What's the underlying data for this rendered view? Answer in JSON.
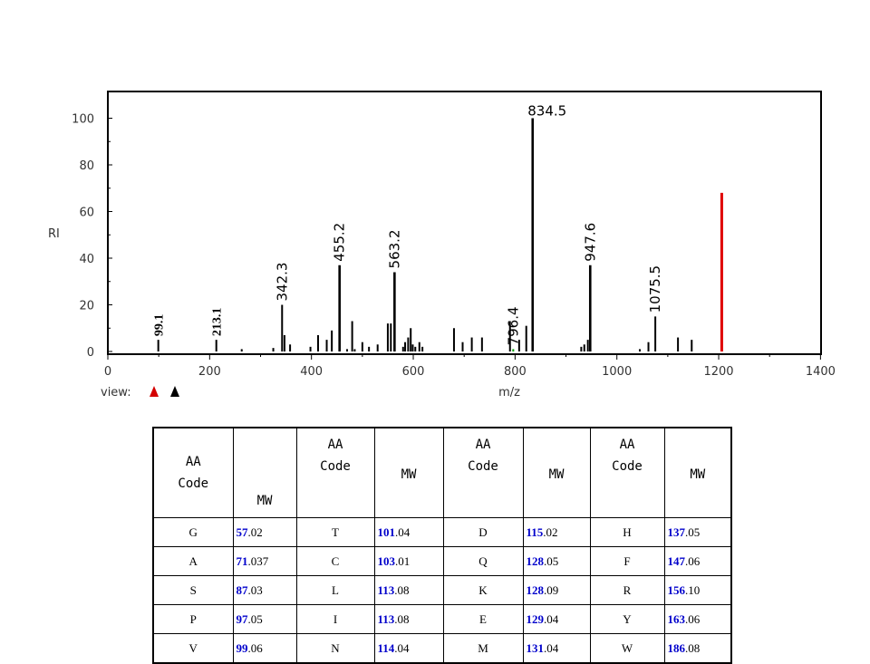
{
  "chart_data": {
    "type": "bar",
    "xlabel": "m/z",
    "ylabel": "RI",
    "xlim": [
      0,
      1400
    ],
    "ylim": [
      0,
      110
    ],
    "x_ticks": [
      0,
      200,
      400,
      600,
      800,
      1000,
      1200,
      1400
    ],
    "y_ticks": [
      0,
      20,
      40,
      60,
      80,
      100
    ],
    "view_label": "view:",
    "peaks": [
      {
        "mz": 99.1,
        "ri": 5
      },
      {
        "mz": 213.1,
        "ri": 5
      },
      {
        "mz": 263,
        "ri": 1
      },
      {
        "mz": 325,
        "ri": 1.5
      },
      {
        "mz": 342.3,
        "ri": 20
      },
      {
        "mz": 347,
        "ri": 7
      },
      {
        "mz": 358,
        "ri": 3
      },
      {
        "mz": 398,
        "ri": 2
      },
      {
        "mz": 413,
        "ri": 7
      },
      {
        "mz": 430,
        "ri": 5
      },
      {
        "mz": 440,
        "ri": 9
      },
      {
        "mz": 455.2,
        "ri": 37
      },
      {
        "mz": 470,
        "ri": 1
      },
      {
        "mz": 480,
        "ri": 13
      },
      {
        "mz": 485,
        "ri": 1
      },
      {
        "mz": 500,
        "ri": 4
      },
      {
        "mz": 513,
        "ri": 2
      },
      {
        "mz": 530,
        "ri": 3
      },
      {
        "mz": 550,
        "ri": 12
      },
      {
        "mz": 556,
        "ri": 12
      },
      {
        "mz": 563.2,
        "ri": 34
      },
      {
        "mz": 580,
        "ri": 2
      },
      {
        "mz": 584,
        "ri": 4
      },
      {
        "mz": 590,
        "ri": 6
      },
      {
        "mz": 595,
        "ri": 10
      },
      {
        "mz": 599,
        "ri": 3
      },
      {
        "mz": 604,
        "ri": 2
      },
      {
        "mz": 612,
        "ri": 4
      },
      {
        "mz": 618,
        "ri": 2
      },
      {
        "mz": 680,
        "ri": 10
      },
      {
        "mz": 697,
        "ri": 4
      },
      {
        "mz": 715,
        "ri": 6
      },
      {
        "mz": 735,
        "ri": 6
      },
      {
        "mz": 790,
        "ri": 13
      },
      {
        "mz": 796.4,
        "ri": 1
      },
      {
        "mz": 808,
        "ri": 5
      },
      {
        "mz": 822,
        "ri": 11
      },
      {
        "mz": 834.5,
        "ri": 100
      },
      {
        "mz": 930,
        "ri": 2
      },
      {
        "mz": 936,
        "ri": 3
      },
      {
        "mz": 943,
        "ri": 5
      },
      {
        "mz": 947.6,
        "ri": 37
      },
      {
        "mz": 1045,
        "ri": 1
      },
      {
        "mz": 1062,
        "ri": 4
      },
      {
        "mz": 1075.5,
        "ri": 15
      },
      {
        "mz": 1120,
        "ri": 6
      },
      {
        "mz": 1147,
        "ri": 5
      },
      {
        "mz": 1206,
        "ri": 68
      }
    ],
    "peak_labels": [
      {
        "mz": 99.1,
        "ri": 5,
        "text": "99.1",
        "style": "serif"
      },
      {
        "mz": 213.1,
        "ri": 5,
        "text": "213.1",
        "style": "serif"
      },
      {
        "mz": 342.3,
        "ri": 20,
        "text": "342.3",
        "style": "sans"
      },
      {
        "mz": 455.2,
        "ri": 37,
        "text": "455.2",
        "style": "sans"
      },
      {
        "mz": 563.2,
        "ri": 34,
        "text": "563.2",
        "style": "sans"
      },
      {
        "mz": 796.4,
        "ri": 1,
        "text": "796.4",
        "style": "sans"
      },
      {
        "mz": 947.6,
        "ri": 37,
        "text": "947.6",
        "style": "sans"
      },
      {
        "mz": 1075.5,
        "ri": 15,
        "text": "1075.5",
        "style": "sans"
      },
      {
        "mz": 834.5,
        "ri": 100,
        "text": "834.5",
        "style": "sans-horizontal"
      }
    ],
    "highlight_color": "#e00000",
    "marker_color": "#00a000"
  },
  "table": {
    "headers": [
      {
        "code": [
          "AA",
          "Code"
        ],
        "mw": "MW"
      },
      {
        "code": [
          "AA",
          "Code"
        ],
        "mw": "MW"
      },
      {
        "code": [
          "AA",
          "Code"
        ],
        "mw": "MW"
      },
      {
        "code": [
          "AA",
          "Code"
        ],
        "mw": "MW"
      }
    ],
    "rows": [
      [
        {
          "code": "G",
          "int": "57",
          "dec": ".02"
        },
        {
          "code": "T",
          "int": "101",
          "dec": ".04"
        },
        {
          "code": "D",
          "int": "115",
          "dec": ".02"
        },
        {
          "code": "H",
          "int": "137",
          "dec": ".05"
        }
      ],
      [
        {
          "code": "A",
          "int": "71",
          "dec": ".037"
        },
        {
          "code": "C",
          "int": "103",
          "dec": ".01"
        },
        {
          "code": "Q",
          "int": "128",
          "dec": ".05"
        },
        {
          "code": "F",
          "int": "147",
          "dec": ".06"
        }
      ],
      [
        {
          "code": "S",
          "int": "87",
          "dec": ".03"
        },
        {
          "code": "L",
          "int": "113",
          "dec": ".08"
        },
        {
          "code": "K",
          "int": "128",
          "dec": ".09"
        },
        {
          "code": "R",
          "int": "156",
          "dec": ".10"
        }
      ],
      [
        {
          "code": "P",
          "int": "97",
          "dec": ".05"
        },
        {
          "code": "I",
          "int": "113",
          "dec": ".08"
        },
        {
          "code": "E",
          "int": "129",
          "dec": ".04"
        },
        {
          "code": "Y",
          "int": "163",
          "dec": ".06"
        }
      ],
      [
        {
          "code": "V",
          "int": "99",
          "dec": ".06"
        },
        {
          "code": "N",
          "int": "114",
          "dec": ".04"
        },
        {
          "code": "M",
          "int": "131",
          "dec": ".04"
        },
        {
          "code": "W",
          "int": "186",
          "dec": ".08"
        }
      ]
    ]
  }
}
